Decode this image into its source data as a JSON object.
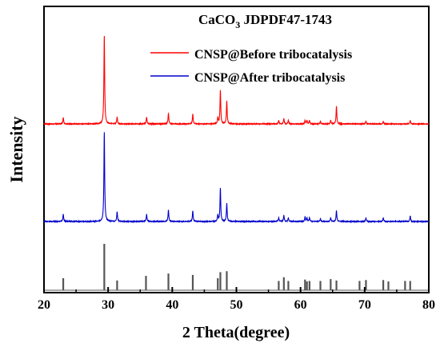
{
  "chart_data": {
    "type": "line",
    "xlabel": "2 Theta(degree)",
    "ylabel": "Intensity",
    "xlim": [
      20,
      80
    ],
    "x_ticks": [
      20,
      30,
      40,
      50,
      60,
      70,
      80
    ],
    "y_tick_labels": false,
    "grid": false,
    "legend_placement": "top-right",
    "reference_label": {
      "base": "CaCO",
      "subscript": "3",
      "rest": " JDPDF47-1743"
    },
    "series": [
      {
        "name": "CNSP@Before tribocatalysis",
        "color": "#ff0000",
        "peaks": [
          {
            "x": 23.0,
            "h": 0.07
          },
          {
            "x": 29.4,
            "h": 1.0
          },
          {
            "x": 31.4,
            "h": 0.08
          },
          {
            "x": 36.0,
            "h": 0.08
          },
          {
            "x": 39.4,
            "h": 0.12
          },
          {
            "x": 43.2,
            "h": 0.11
          },
          {
            "x": 47.1,
            "h": 0.07
          },
          {
            "x": 47.5,
            "h": 0.38
          },
          {
            "x": 48.5,
            "h": 0.26
          },
          {
            "x": 56.6,
            "h": 0.04
          },
          {
            "x": 57.4,
            "h": 0.06
          },
          {
            "x": 58.1,
            "h": 0.04
          },
          {
            "x": 60.7,
            "h": 0.04
          },
          {
            "x": 61.0,
            "h": 0.04
          },
          {
            "x": 61.4,
            "h": 0.04
          },
          {
            "x": 63.1,
            "h": 0.03
          },
          {
            "x": 64.7,
            "h": 0.04
          },
          {
            "x": 65.6,
            "h": 0.2
          },
          {
            "x": 70.2,
            "h": 0.03
          },
          {
            "x": 72.9,
            "h": 0.03
          },
          {
            "x": 77.1,
            "h": 0.04
          }
        ]
      },
      {
        "name": "CNSP@After tribocatalysis",
        "color": "#0000cc",
        "peaks": [
          {
            "x": 23.0,
            "h": 0.08
          },
          {
            "x": 29.4,
            "h": 1.0
          },
          {
            "x": 31.4,
            "h": 0.11
          },
          {
            "x": 36.0,
            "h": 0.08
          },
          {
            "x": 39.4,
            "h": 0.13
          },
          {
            "x": 43.2,
            "h": 0.12
          },
          {
            "x": 47.1,
            "h": 0.07
          },
          {
            "x": 47.5,
            "h": 0.37
          },
          {
            "x": 48.5,
            "h": 0.2
          },
          {
            "x": 56.6,
            "h": 0.04
          },
          {
            "x": 57.4,
            "h": 0.07
          },
          {
            "x": 58.1,
            "h": 0.04
          },
          {
            "x": 60.7,
            "h": 0.05
          },
          {
            "x": 61.0,
            "h": 0.04
          },
          {
            "x": 61.4,
            "h": 0.04
          },
          {
            "x": 63.1,
            "h": 0.03
          },
          {
            "x": 64.7,
            "h": 0.04
          },
          {
            "x": 65.6,
            "h": 0.12
          },
          {
            "x": 70.2,
            "h": 0.04
          },
          {
            "x": 72.9,
            "h": 0.04
          },
          {
            "x": 77.1,
            "h": 0.06
          }
        ]
      },
      {
        "name": "CaCO3 JDPDF47-1743",
        "color": "#555555",
        "type": "stick",
        "peaks": [
          {
            "x": 23.0,
            "h": 0.26
          },
          {
            "x": 29.4,
            "h": 1.0
          },
          {
            "x": 31.4,
            "h": 0.21
          },
          {
            "x": 35.9,
            "h": 0.31
          },
          {
            "x": 39.4,
            "h": 0.36
          },
          {
            "x": 43.2,
            "h": 0.33
          },
          {
            "x": 47.1,
            "h": 0.26
          },
          {
            "x": 47.5,
            "h": 0.39
          },
          {
            "x": 48.5,
            "h": 0.41
          },
          {
            "x": 56.6,
            "h": 0.2
          },
          {
            "x": 57.4,
            "h": 0.28
          },
          {
            "x": 58.1,
            "h": 0.2
          },
          {
            "x": 60.7,
            "h": 0.23
          },
          {
            "x": 61.0,
            "h": 0.19
          },
          {
            "x": 61.4,
            "h": 0.2
          },
          {
            "x": 63.1,
            "h": 0.2
          },
          {
            "x": 64.7,
            "h": 0.24
          },
          {
            "x": 65.6,
            "h": 0.21
          },
          {
            "x": 69.2,
            "h": 0.2
          },
          {
            "x": 70.2,
            "h": 0.22
          },
          {
            "x": 72.9,
            "h": 0.22
          },
          {
            "x": 73.7,
            "h": 0.19
          },
          {
            "x": 76.3,
            "h": 0.2
          },
          {
            "x": 77.1,
            "h": 0.2
          }
        ]
      }
    ]
  }
}
